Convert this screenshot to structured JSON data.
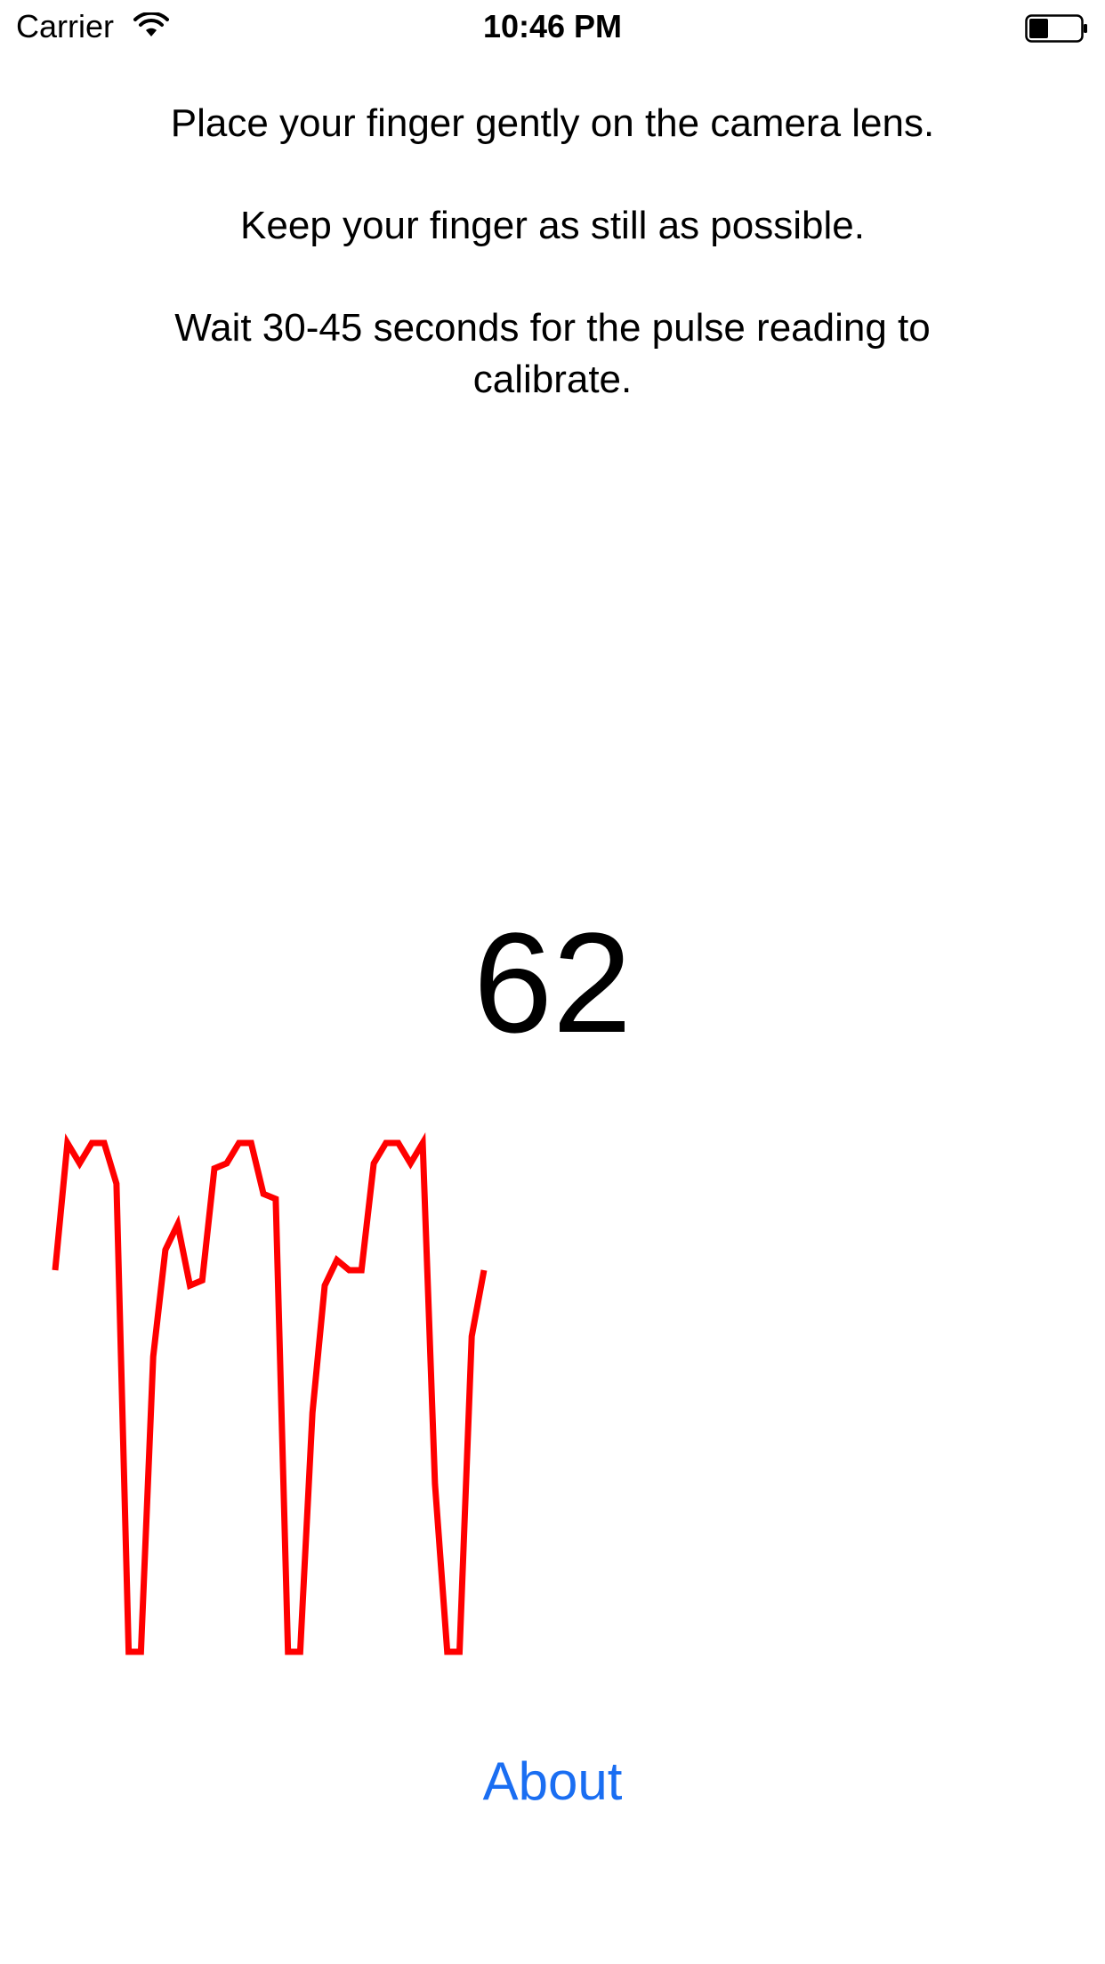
{
  "status_bar": {
    "carrier": "Carrier",
    "time": "10:46 PM",
    "wifi_icon": "wifi-icon",
    "battery_icon": "battery-icon"
  },
  "instructions": {
    "line1": "Place your finger gently on the camera lens.",
    "line2": "Keep your finger as still as possible.",
    "line3": "Wait 30-45 seconds for the pulse reading to calibrate."
  },
  "pulse": {
    "bpm": "62"
  },
  "graph": {
    "color": "#ff0000",
    "samples": [
      0.25,
      0.0,
      0.04,
      0.0,
      0.0,
      0.08,
      1.0,
      1.0,
      0.42,
      0.21,
      0.16,
      0.28,
      0.27,
      0.05,
      0.04,
      0.0,
      0.0,
      0.1,
      0.11,
      1.0,
      1.0,
      0.53,
      0.28,
      0.23,
      0.25,
      0.25,
      0.04,
      0.0,
      0.0,
      0.04,
      0.0,
      0.67,
      1.0,
      1.0,
      0.38,
      0.25
    ]
  },
  "about": {
    "label": "About"
  }
}
